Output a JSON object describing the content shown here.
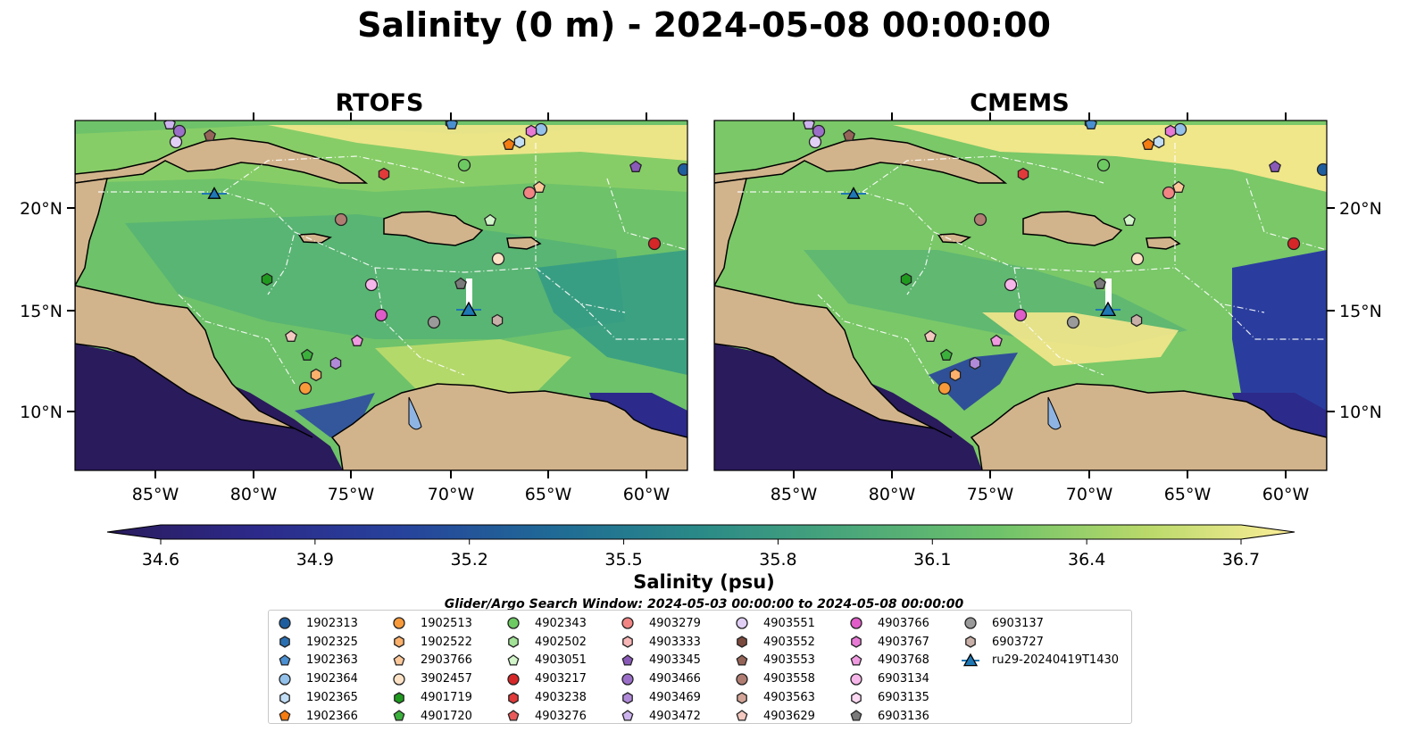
{
  "title": "Salinity (0 m) - 2024-05-08 00:00:00",
  "panels": [
    {
      "title": "RTOFS"
    },
    {
      "title": "CMEMS"
    }
  ],
  "lon_ticks": [
    "85°W",
    "80°W",
    "75°W",
    "70°W",
    "65°W",
    "60°W"
  ],
  "lat_ticks": [
    "20°N",
    "15°N",
    "10°N"
  ],
  "colorbar": {
    "label": "Salinity (psu)",
    "ticks": [
      "34.6",
      "34.9",
      "35.2",
      "35.5",
      "35.8",
      "36.1",
      "36.4",
      "36.7"
    ],
    "range": [
      34.6,
      36.7
    ],
    "colors": [
      "#2a1b5c",
      "#2c2a8a",
      "#27439c",
      "#1f6a96",
      "#2a8a87",
      "#4aa77a",
      "#6ec26a",
      "#b9d96a",
      "#fdee99"
    ]
  },
  "search_window": "Glider/Argo Search Window: 2024-05-03 00:00:00 to 2024-05-08 00:00:00",
  "map_colors": {
    "land": "#d2b48c",
    "lake": "#8eb4e3",
    "glider_track": "#ffffff",
    "glider_marker": "#1f77b4"
  },
  "legend": [
    {
      "label": "1902313",
      "shape": "circle",
      "color": "#1f5e9e"
    },
    {
      "label": "1902325",
      "shape": "hexagon",
      "color": "#2a6fb0"
    },
    {
      "label": "1902363",
      "shape": "pentagon",
      "color": "#4a8fd0"
    },
    {
      "label": "1902364",
      "shape": "circle",
      "color": "#93c1ea"
    },
    {
      "label": "1902365",
      "shape": "hexagon",
      "color": "#c2def5"
    },
    {
      "label": "1902366",
      "shape": "pentagon",
      "color": "#f47c10"
    },
    {
      "label": "1902513",
      "shape": "circle",
      "color": "#f89a3a"
    },
    {
      "label": "1902522",
      "shape": "hexagon",
      "color": "#fbb06c"
    },
    {
      "label": "2903766",
      "shape": "pentagon",
      "color": "#fcc89a"
    },
    {
      "label": "3902457",
      "shape": "circle",
      "color": "#fde2c6"
    },
    {
      "label": "4901719",
      "shape": "hexagon",
      "color": "#1f9a1f"
    },
    {
      "label": "4901720",
      "shape": "pentagon",
      "color": "#3cb03c"
    },
    {
      "label": "4902343",
      "shape": "circle",
      "color": "#6dca62"
    },
    {
      "label": "4902502",
      "shape": "hexagon",
      "color": "#a2e296"
    },
    {
      "label": "4903051",
      "shape": "pentagon",
      "color": "#d2f5c9"
    },
    {
      "label": "4903217",
      "shape": "circle",
      "color": "#d62728"
    },
    {
      "label": "4903238",
      "shape": "hexagon",
      "color": "#e03a3a"
    },
    {
      "label": "4903276",
      "shape": "pentagon",
      "color": "#ea5a5a"
    },
    {
      "label": "4903279",
      "shape": "circle",
      "color": "#f28484"
    },
    {
      "label": "4903333",
      "shape": "hexagon",
      "color": "#f8b6b6"
    },
    {
      "label": "4903345",
      "shape": "pentagon",
      "color": "#8a5ab8"
    },
    {
      "label": "4903466",
      "shape": "circle",
      "color": "#9b6fc8"
    },
    {
      "label": "4903469",
      "shape": "hexagon",
      "color": "#b08ad8"
    },
    {
      "label": "4903472",
      "shape": "pentagon",
      "color": "#cdb4ee"
    },
    {
      "label": "4903551",
      "shape": "circle",
      "color": "#e1cff5"
    },
    {
      "label": "4903552",
      "shape": "hexagon",
      "color": "#7b4a3f"
    },
    {
      "label": "4903553",
      "shape": "pentagon",
      "color": "#956458"
    },
    {
      "label": "4903558",
      "shape": "circle",
      "color": "#b07d72"
    },
    {
      "label": "4903563",
      "shape": "hexagon",
      "color": "#d3a599"
    },
    {
      "label": "4903629",
      "shape": "pentagon",
      "color": "#f3c9c0"
    },
    {
      "label": "4903766",
      "shape": "circle",
      "color": "#e05cc8"
    },
    {
      "label": "4903767",
      "shape": "hexagon",
      "color": "#e77ad4"
    },
    {
      "label": "4903768",
      "shape": "pentagon",
      "color": "#f09ae0"
    },
    {
      "label": "6903134",
      "shape": "circle",
      "color": "#f7b6ea"
    },
    {
      "label": "6903135",
      "shape": "hexagon",
      "color": "#fcd8f2"
    },
    {
      "label": "6903136",
      "shape": "pentagon",
      "color": "#7a7a7a"
    },
    {
      "label": "6903137",
      "shape": "circle",
      "color": "#9a9a9a"
    },
    {
      "label": "6903727",
      "shape": "hexagon",
      "color": "#c8b0a8"
    },
    {
      "label": "ru29-20240419T1430",
      "shape": "triangle-line",
      "color": "#1f77b4"
    }
  ]
}
